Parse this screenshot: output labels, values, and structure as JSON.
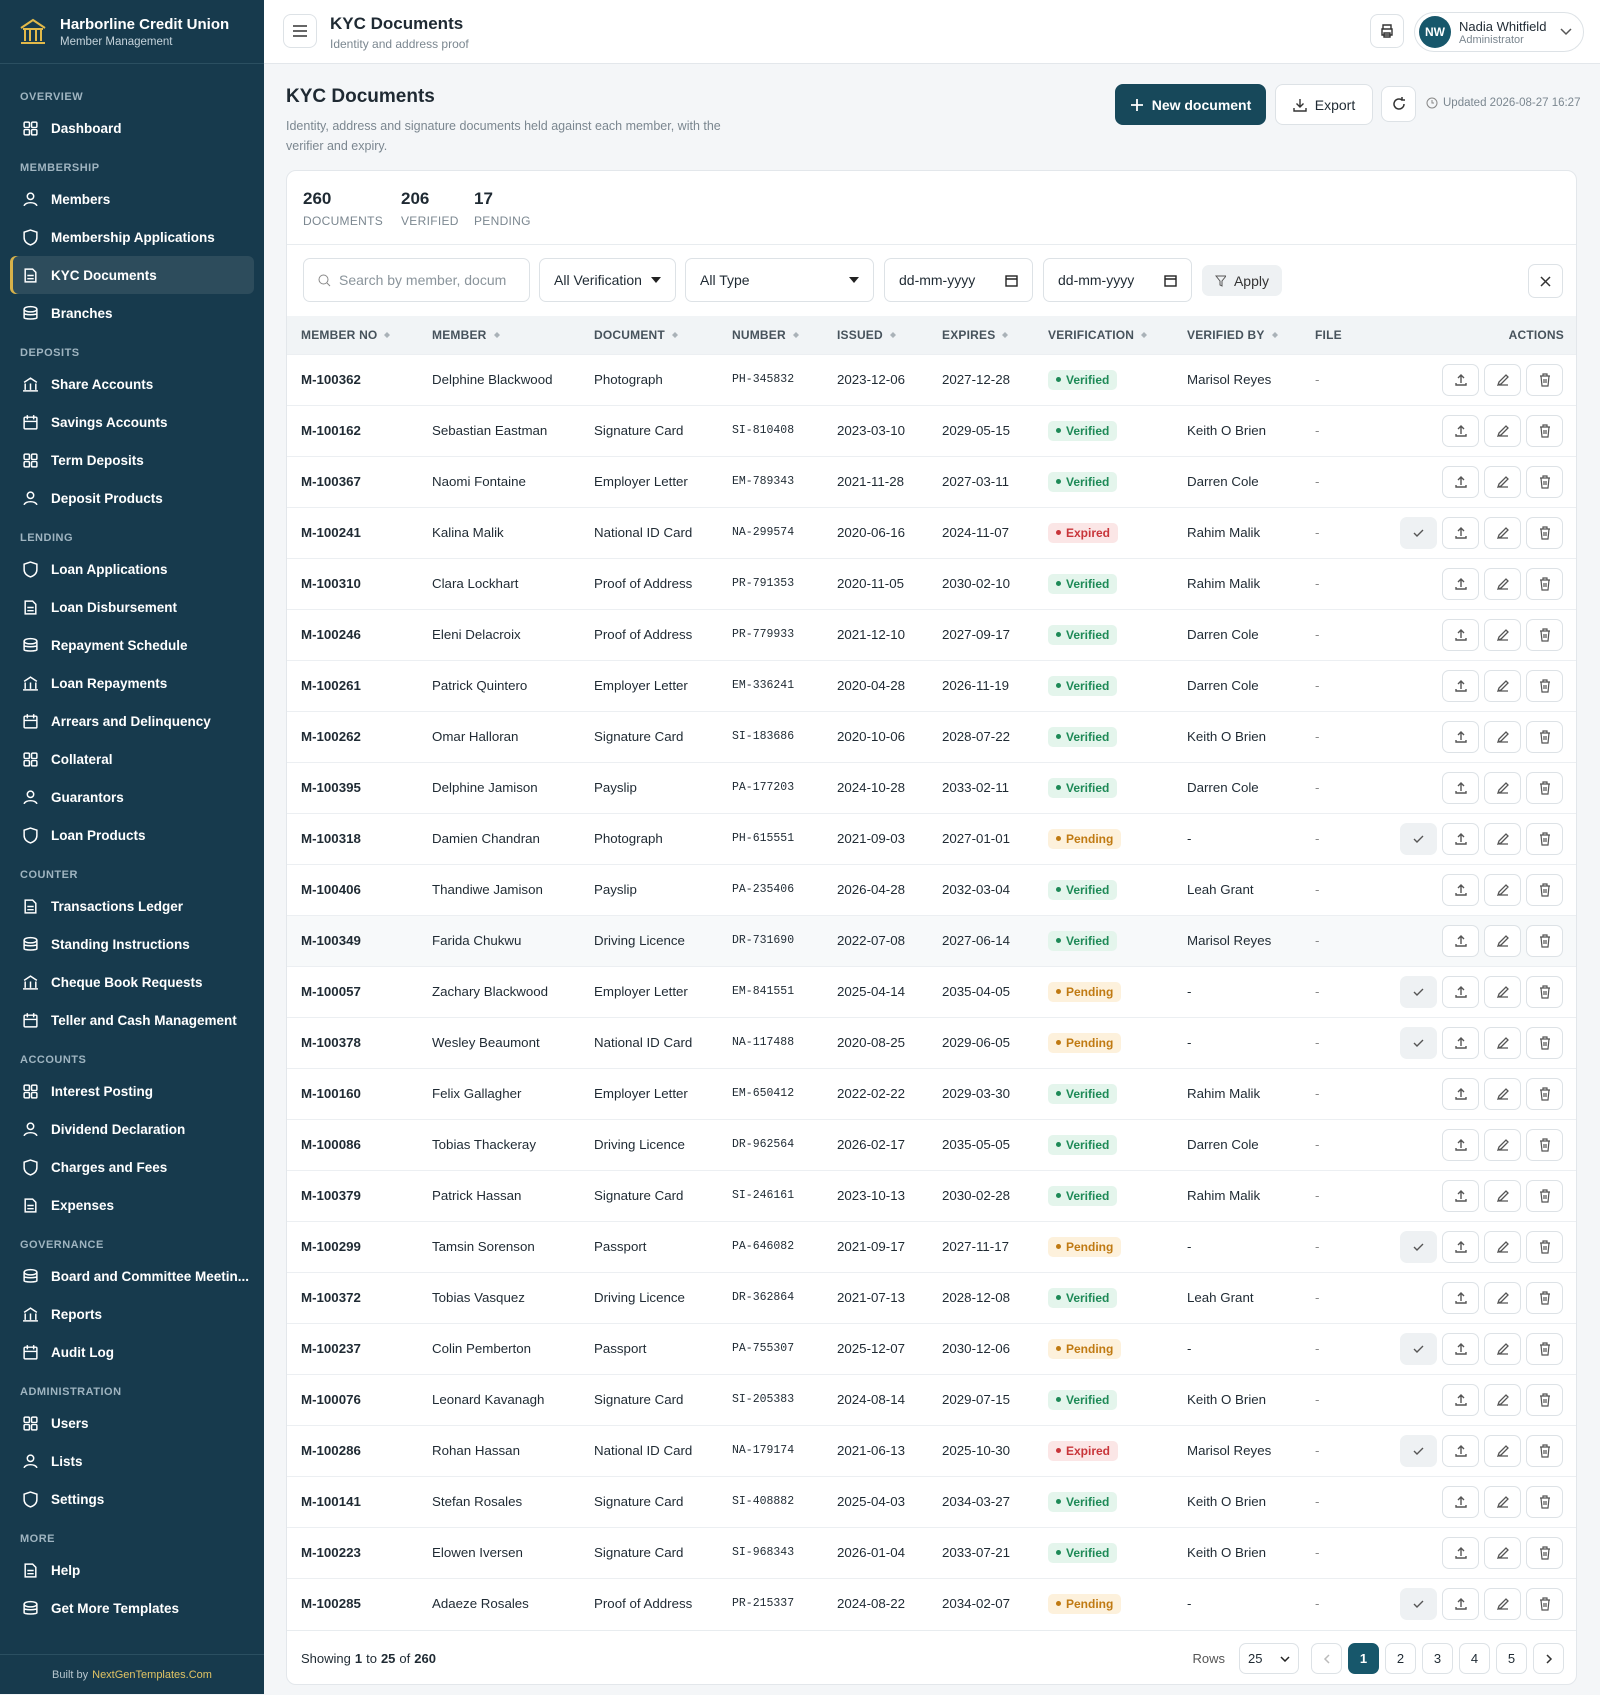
{
  "sidebar": {
    "brand": "Harborline Credit Union",
    "tagline": "Member Management",
    "sections": [
      {
        "title": "OVERVIEW",
        "items": [
          {
            "label": "Dashboard"
          }
        ]
      },
      {
        "title": "MEMBERSHIP",
        "items": [
          {
            "label": "Members"
          },
          {
            "label": "Membership Applications"
          },
          {
            "label": "KYC Documents",
            "active": true
          },
          {
            "label": "Branches"
          }
        ]
      },
      {
        "title": "DEPOSITS",
        "items": [
          {
            "label": "Share Accounts"
          },
          {
            "label": "Savings Accounts"
          },
          {
            "label": "Term Deposits"
          },
          {
            "label": "Deposit Products"
          }
        ]
      },
      {
        "title": "LENDING",
        "items": [
          {
            "label": "Loan Applications"
          },
          {
            "label": "Loan Disbursement"
          },
          {
            "label": "Repayment Schedule"
          },
          {
            "label": "Loan Repayments"
          },
          {
            "label": "Arrears and Delinquency"
          },
          {
            "label": "Collateral"
          },
          {
            "label": "Guarantors"
          },
          {
            "label": "Loan Products"
          }
        ]
      },
      {
        "title": "COUNTER",
        "items": [
          {
            "label": "Transactions Ledger"
          },
          {
            "label": "Standing Instructions"
          },
          {
            "label": "Cheque Book Requests"
          },
          {
            "label": "Teller and Cash Management"
          }
        ]
      },
      {
        "title": "ACCOUNTS",
        "items": [
          {
            "label": "Interest Posting"
          },
          {
            "label": "Dividend Declaration"
          },
          {
            "label": "Charges and Fees"
          },
          {
            "label": "Expenses"
          }
        ]
      },
      {
        "title": "GOVERNANCE",
        "items": [
          {
            "label": "Board and Committee Meetin..."
          },
          {
            "label": "Reports"
          },
          {
            "label": "Audit Log"
          }
        ]
      },
      {
        "title": "ADMINISTRATION",
        "items": [
          {
            "label": "Users"
          },
          {
            "label": "Lists"
          },
          {
            "label": "Settings"
          }
        ]
      },
      {
        "title": "MORE",
        "items": [
          {
            "label": "Help"
          },
          {
            "label": "Get More Templates"
          }
        ]
      }
    ],
    "footer": {
      "prefix": "Built by",
      "link": "NextGenTemplates.Com"
    }
  },
  "topbar": {
    "title": "KYC Documents",
    "subtitle": "Identity and address proof",
    "user": {
      "initials": "NW",
      "name": "Nadia Whitfield",
      "role": "Administrator"
    }
  },
  "page": {
    "title": "KYC Documents",
    "description": "Identity, address and signature documents held against each member, with the verifier and expiry.",
    "new_button": "New document",
    "export_button": "Export",
    "updated": "Updated 2026-08-27 16:27"
  },
  "stats": [
    {
      "value": 260,
      "label": "DOCUMENTS"
    },
    {
      "value": 206,
      "label": "VERIFIED"
    },
    {
      "value": 17,
      "label": "PENDING"
    }
  ],
  "filters": {
    "search_placeholder": "Search by member, docum",
    "verification": "All Verification",
    "type": "All Type",
    "date_from": "dd-mm-yyyy",
    "date_to": "dd-mm-yyyy",
    "apply": "Apply"
  },
  "status_styles": {
    "Verified": {
      "color": "#1e8a57",
      "background": "#e4f5ec",
      "approve_action": false
    },
    "Pending": {
      "color": "#c07a12",
      "background": "#fdf1dc",
      "approve_action": true
    },
    "Expired": {
      "color": "#c8353a",
      "background": "#fbe6e6",
      "approve_action": true
    }
  },
  "table": {
    "columns": [
      {
        "label": "MEMBER NO",
        "sortable": true
      },
      {
        "label": "MEMBER",
        "sortable": true
      },
      {
        "label": "DOCUMENT",
        "sortable": true
      },
      {
        "label": "NUMBER",
        "sortable": true
      },
      {
        "label": "ISSUED",
        "sortable": true
      },
      {
        "label": "EXPIRES",
        "sortable": true
      },
      {
        "label": "VERIFICATION",
        "sortable": true
      },
      {
        "label": "VERIFIED BY",
        "sortable": true
      },
      {
        "label": "FILE",
        "sortable": false
      },
      {
        "label": "ACTIONS",
        "sortable": false
      }
    ],
    "rows": [
      [
        "M-100362",
        "Delphine Blackwood",
        "Photograph",
        "PH-345832",
        "2023-12-06",
        "2027-12-28",
        "Verified",
        "Marisol Reyes",
        "-"
      ],
      [
        "M-100162",
        "Sebastian Eastman",
        "Signature Card",
        "SI-810408",
        "2023-03-10",
        "2029-05-15",
        "Verified",
        "Keith O Brien",
        "-"
      ],
      [
        "M-100367",
        "Naomi Fontaine",
        "Employer Letter",
        "EM-789343",
        "2021-11-28",
        "2027-03-11",
        "Verified",
        "Darren Cole",
        "-"
      ],
      [
        "M-100241",
        "Kalina Malik",
        "National ID Card",
        "NA-299574",
        "2020-06-16",
        "2024-11-07",
        "Expired",
        "Rahim Malik",
        "-"
      ],
      [
        "M-100310",
        "Clara Lockhart",
        "Proof of Address",
        "PR-791353",
        "2020-11-05",
        "2030-02-10",
        "Verified",
        "Rahim Malik",
        "-"
      ],
      [
        "M-100246",
        "Eleni Delacroix",
        "Proof of Address",
        "PR-779933",
        "2021-12-10",
        "2027-09-17",
        "Verified",
        "Darren Cole",
        "-"
      ],
      [
        "M-100261",
        "Patrick Quintero",
        "Employer Letter",
        "EM-336241",
        "2020-04-28",
        "2026-11-19",
        "Verified",
        "Darren Cole",
        "-"
      ],
      [
        "M-100262",
        "Omar Halloran",
        "Signature Card",
        "SI-183686",
        "2020-10-06",
        "2028-07-22",
        "Verified",
        "Keith O Brien",
        "-"
      ],
      [
        "M-100395",
        "Delphine Jamison",
        "Payslip",
        "PA-177203",
        "2024-10-28",
        "2033-02-11",
        "Verified",
        "Darren Cole",
        "-"
      ],
      [
        "M-100318",
        "Damien Chandran",
        "Photograph",
        "PH-615551",
        "2021-09-03",
        "2027-01-01",
        "Pending",
        "-",
        "-"
      ],
      [
        "M-100406",
        "Thandiwe Jamison",
        "Payslip",
        "PA-235406",
        "2026-04-28",
        "2032-03-04",
        "Verified",
        "Leah Grant",
        "-"
      ],
      [
        "M-100349",
        "Farida Chukwu",
        "Driving Licence",
        "DR-731690",
        "2022-07-08",
        "2027-06-14",
        "Verified",
        "Marisol Reyes",
        "-"
      ],
      [
        "M-100057",
        "Zachary Blackwood",
        "Employer Letter",
        "EM-841551",
        "2025-04-14",
        "2035-04-05",
        "Pending",
        "-",
        "-"
      ],
      [
        "M-100378",
        "Wesley Beaumont",
        "National ID Card",
        "NA-117488",
        "2020-08-25",
        "2029-06-05",
        "Pending",
        "-",
        "-"
      ],
      [
        "M-100160",
        "Felix Gallagher",
        "Employer Letter",
        "EM-650412",
        "2022-02-22",
        "2029-03-30",
        "Verified",
        "Rahim Malik",
        "-"
      ],
      [
        "M-100086",
        "Tobias Thackeray",
        "Driving Licence",
        "DR-962564",
        "2026-02-17",
        "2035-05-05",
        "Verified",
        "Darren Cole",
        "-"
      ],
      [
        "M-100379",
        "Patrick Hassan",
        "Signature Card",
        "SI-246161",
        "2023-10-13",
        "2030-02-28",
        "Verified",
        "Rahim Malik",
        "-"
      ],
      [
        "M-100299",
        "Tamsin Sorenson",
        "Passport",
        "PA-646082",
        "2021-09-17",
        "2027-11-17",
        "Pending",
        "-",
        "-"
      ],
      [
        "M-100372",
        "Tobias Vasquez",
        "Driving Licence",
        "DR-362864",
        "2021-07-13",
        "2028-12-08",
        "Verified",
        "Leah Grant",
        "-"
      ],
      [
        "M-100237",
        "Colin Pemberton",
        "Passport",
        "PA-755307",
        "2025-12-07",
        "2030-12-06",
        "Pending",
        "-",
        "-"
      ],
      [
        "M-100076",
        "Leonard Kavanagh",
        "Signature Card",
        "SI-205383",
        "2024-08-14",
        "2029-07-15",
        "Verified",
        "Keith O Brien",
        "-"
      ],
      [
        "M-100286",
        "Rohan Hassan",
        "National ID Card",
        "NA-179174",
        "2021-06-13",
        "2025-10-30",
        "Expired",
        "Marisol Reyes",
        "-"
      ],
      [
        "M-100141",
        "Stefan Rosales",
        "Signature Card",
        "SI-408882",
        "2025-04-03",
        "2034-03-27",
        "Verified",
        "Keith O Brien",
        "-"
      ],
      [
        "M-100223",
        "Elowen Iversen",
        "Signature Card",
        "SI-968343",
        "2026-01-04",
        "2033-07-21",
        "Verified",
        "Keith O Brien",
        "-"
      ],
      [
        "M-100285",
        "Adaeze Rosales",
        "Proof of Address",
        "PR-215337",
        "2024-08-22",
        "2034-02-07",
        "Pending",
        "-",
        "-"
      ]
    ]
  },
  "pagination": {
    "showing": "Showing",
    "from": 1,
    "to_word": "to",
    "to": 25,
    "of_word": "of",
    "total": 260,
    "rows_label": "Rows",
    "rows_per_page": 25,
    "pages": [
      1,
      2,
      3,
      4,
      5
    ],
    "current": 1
  }
}
